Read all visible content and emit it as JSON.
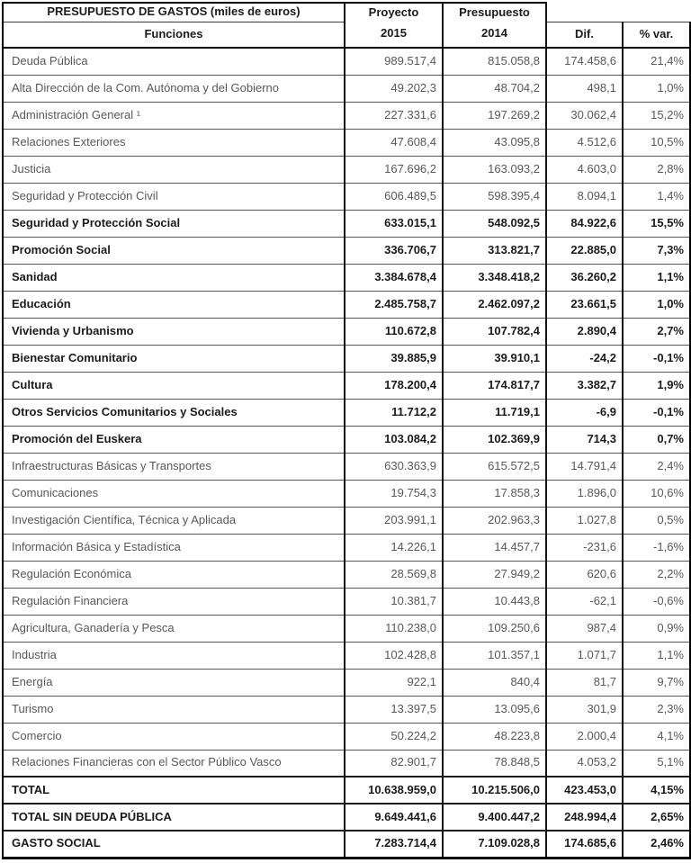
{
  "header": {
    "title": "PRESUPUESTO DE GASTOS (miles de euros)",
    "funciones": "Funciones",
    "proyecto_line1": "Proyecto",
    "proyecto_line2": "2015",
    "presupuesto_line1": "Presupuesto",
    "presupuesto_line2": "2014",
    "dif": "Dif.",
    "pct_var": "% var."
  },
  "rows": [
    {
      "label": "Deuda Pública",
      "v2015": "989.517,4",
      "v2014": "815.058,8",
      "dif": "174.458,6",
      "var": "21,4%",
      "bold": false
    },
    {
      "label": "Alta Dirección de la Com. Autónoma y del Gobierno",
      "v2015": "49.202,3",
      "v2014": "48.704,2",
      "dif": "498,1",
      "var": "1,0%",
      "bold": false
    },
    {
      "label": "Administración General ¹",
      "v2015": "227.331,6",
      "v2014": "197.269,2",
      "dif": "30.062,4",
      "var": "15,2%",
      "bold": false
    },
    {
      "label": "Relaciones Exteriores",
      "v2015": "47.608,4",
      "v2014": "43.095,8",
      "dif": "4.512,6",
      "var": "10,5%",
      "bold": false
    },
    {
      "label": "Justicia",
      "v2015": "167.696,2",
      "v2014": "163.093,2",
      "dif": "4.603,0",
      "var": "2,8%",
      "bold": false
    },
    {
      "label": "Seguridad y Protección Civil",
      "v2015": "606.489,5",
      "v2014": "598.395,4",
      "dif": "8.094,1",
      "var": "1,4%",
      "bold": false
    },
    {
      "label": "Seguridad y Protección Social",
      "v2015": "633.015,1",
      "v2014": "548.092,5",
      "dif": "84.922,6",
      "var": "15,5%",
      "bold": true
    },
    {
      "label": "Promoción Social",
      "v2015": "336.706,7",
      "v2014": "313.821,7",
      "dif": "22.885,0",
      "var": "7,3%",
      "bold": true
    },
    {
      "label": "Sanidad",
      "v2015": "3.384.678,4",
      "v2014": "3.348.418,2",
      "dif": "36.260,2",
      "var": "1,1%",
      "bold": true
    },
    {
      "label": "Educación",
      "v2015": "2.485.758,7",
      "v2014": "2.462.097,2",
      "dif": "23.661,5",
      "var": "1,0%",
      "bold": true
    },
    {
      "label": "Vivienda y Urbanismo",
      "v2015": "110.672,8",
      "v2014": "107.782,4",
      "dif": "2.890,4",
      "var": "2,7%",
      "bold": true
    },
    {
      "label": "Bienestar Comunitario",
      "v2015": "39.885,9",
      "v2014": "39.910,1",
      "dif": "-24,2",
      "var": "-0,1%",
      "bold": true
    },
    {
      "label": "Cultura",
      "v2015": "178.200,4",
      "v2014": "174.817,7",
      "dif": "3.382,7",
      "var": "1,9%",
      "bold": true
    },
    {
      "label": "Otros Servicios Comunitarios y Sociales",
      "v2015": "11.712,2",
      "v2014": "11.719,1",
      "dif": "-6,9",
      "var": "-0,1%",
      "bold": true
    },
    {
      "label": "Promoción del Euskera",
      "v2015": "103.084,2",
      "v2014": "102.369,9",
      "dif": "714,3",
      "var": "0,7%",
      "bold": true
    },
    {
      "label": "Infraestructuras Básicas y Transportes",
      "v2015": "630.363,9",
      "v2014": "615.572,5",
      "dif": "14.791,4",
      "var": "2,4%",
      "bold": false
    },
    {
      "label": "Comunicaciones",
      "v2015": "19.754,3",
      "v2014": "17.858,3",
      "dif": "1.896,0",
      "var": "10,6%",
      "bold": false
    },
    {
      "label": "Investigación Científica, Técnica y Aplicada",
      "v2015": "203.991,1",
      "v2014": "202.963,3",
      "dif": "1.027,8",
      "var": "0,5%",
      "bold": false
    },
    {
      "label": "Información Básica y Estadística",
      "v2015": "14.226,1",
      "v2014": "14.457,7",
      "dif": "-231,6",
      "var": "-1,6%",
      "bold": false
    },
    {
      "label": "Regulación Económica",
      "v2015": "28.569,8",
      "v2014": "27.949,2",
      "dif": "620,6",
      "var": "2,2%",
      "bold": false
    },
    {
      "label": "Regulación Financiera",
      "v2015": "10.381,7",
      "v2014": "10.443,8",
      "dif": "-62,1",
      "var": "-0,6%",
      "bold": false
    },
    {
      "label": "Agricultura, Ganadería y Pesca",
      "v2015": "110.238,0",
      "v2014": "109.250,6",
      "dif": "987,4",
      "var": "0,9%",
      "bold": false
    },
    {
      "label": "Industria",
      "v2015": "102.428,8",
      "v2014": "101.357,1",
      "dif": "1.071,7",
      "var": "1,1%",
      "bold": false
    },
    {
      "label": "Energía",
      "v2015": "922,1",
      "v2014": "840,4",
      "dif": "81,7",
      "var": "9,7%",
      "bold": false
    },
    {
      "label": "Turismo",
      "v2015": "13.397,5",
      "v2014": "13.095,6",
      "dif": "301,9",
      "var": "2,3%",
      "bold": false
    },
    {
      "label": "Comercio",
      "v2015": "50.224,2",
      "v2014": "48.223,8",
      "dif": "2.000,4",
      "var": "4,1%",
      "bold": false
    },
    {
      "label": "Relaciones Financieras con el Sector Público Vasco",
      "v2015": "82.901,7",
      "v2014": "78.848,5",
      "dif": "4.053,2",
      "var": "5,1%",
      "bold": false
    },
    {
      "label": "TOTAL",
      "v2015": "10.638.959,0",
      "v2014": "10.215.506,0",
      "dif": "423.453,0",
      "var": "4,15%",
      "bold": true
    },
    {
      "label": "TOTAL SIN DEUDA PÚBLICA",
      "v2015": "9.649.441,6",
      "v2014": "9.400.447,2",
      "dif": "248.994,4",
      "var": "2,65%",
      "bold": true
    },
    {
      "label": "GASTO SOCIAL",
      "v2015": "7.283.714,4",
      "v2014": "7.109.028,8",
      "dif": "174.685,6",
      "var": "2,46%",
      "bold": true
    }
  ]
}
